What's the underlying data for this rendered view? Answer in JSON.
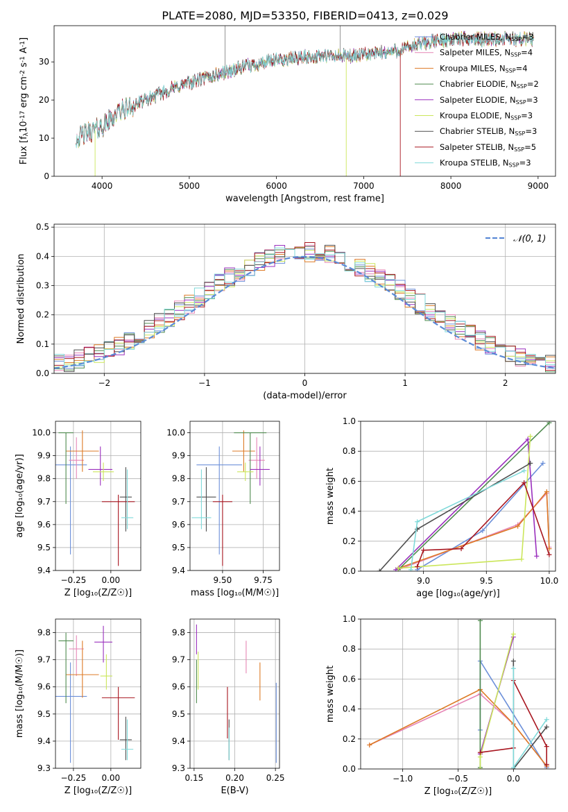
{
  "figure_title": "PLATE=2080, MJD=53350, FIBERID=0413, z=0.029",
  "colors": {
    "Chabrier MILES": "#6b8fd9",
    "Salpeter MILES": "#e685b5",
    "Kroupa MILES": "#dd7a24",
    "Chabrier ELODIE": "#4e8a4e",
    "Salpeter ELODIE": "#9a2fbd",
    "Kroupa ELODIE": "#cbe65a",
    "Chabrier STELIB": "#4d4d4d",
    "Salpeter STELIB": "#a8151f",
    "Kroupa STELIB": "#7fd9d9"
  },
  "chart_data": [
    {
      "id": "spectrum",
      "type": "line",
      "xlabel": "wavelength [Angstrom, rest frame]",
      "ylabel": "Flux [f$_\\lambda$10$^{-17}$ erg cm$^{-2}$ s$^{-1}$ A$^{-1}$]",
      "xlim": [
        3450,
        9200
      ],
      "ylim": [
        0,
        39.5
      ],
      "xticks": [
        4000,
        5000,
        6000,
        7000,
        8000,
        9000
      ],
      "yticks": [
        0,
        10,
        20,
        30
      ],
      "grid": false,
      "legend_position": "top-right",
      "legend": [
        {
          "name": "Chabrier MILES",
          "nssp": "3"
        },
        {
          "name": "Salpeter MILES",
          "nssp": "4"
        },
        {
          "name": "Kroupa MILES",
          "nssp": "4"
        },
        {
          "name": "Chabrier ELODIE",
          "nssp": "2"
        },
        {
          "name": "Salpeter ELODIE",
          "nssp": "3"
        },
        {
          "name": "Kroupa ELODIE",
          "nssp": "3"
        },
        {
          "name": "Chabrier STELIB",
          "nssp": "3"
        },
        {
          "name": "Salpeter STELIB",
          "nssp": "5"
        },
        {
          "name": "Kroupa STELIB",
          "nssp": "3"
        }
      ],
      "continuum": {
        "x": [
          3700,
          3900,
          4000,
          4200,
          4500,
          4800,
          5000,
          5300,
          5600,
          5900,
          6200,
          6500,
          6800,
          7100,
          7400,
          7700,
          8000,
          8300,
          8600,
          8900
        ],
        "y": [
          10,
          12,
          13,
          17,
          20,
          23,
          24.5,
          26.5,
          28.5,
          30,
          31,
          31.5,
          31.5,
          32,
          33,
          35,
          36,
          36,
          36,
          36
        ]
      }
    },
    {
      "id": "residuals",
      "type": "line",
      "xlabel": "(data-model)/error",
      "ylabel": "Normed distribution",
      "xlim": [
        -2.5,
        2.5
      ],
      "ylim": [
        0,
        0.51
      ],
      "xticks": [
        -2,
        -1,
        0,
        1,
        2
      ],
      "yticks": [
        0.0,
        0.1,
        0.2,
        0.3,
        0.4,
        0.5
      ],
      "grid": true,
      "legend_position": "top-right",
      "normal_label": "𝒩(0, 1)",
      "bin_width": 0.1
    },
    {
      "id": "age-vs-Z",
      "type": "scatter",
      "xlabel": "Z [log₁₀(Z/Z☉)]",
      "ylabel": "age  [log₁₀(age/yr)]",
      "xlim": [
        -0.37,
        0.2
      ],
      "ylim": [
        9.4,
        10.05
      ],
      "xticks": [
        -0.25,
        0.0
      ],
      "yticks": [
        9.4,
        9.5,
        9.6,
        9.7,
        9.8,
        9.9,
        10.0
      ],
      "grid": true,
      "points": [
        {
          "model": "Chabrier MILES",
          "x": -0.27,
          "xerr": 0.11,
          "y": 9.86,
          "ylo": 9.47,
          "yhi": 9.94
        },
        {
          "model": "Salpeter MILES",
          "x": -0.23,
          "xerr": 0.05,
          "y": 9.88,
          "ylo": 9.8,
          "yhi": 9.98
        },
        {
          "model": "Kroupa MILES",
          "x": -0.19,
          "xerr": 0.11,
          "y": 9.92,
          "ylo": 9.83,
          "yhi": 10.01
        },
        {
          "model": "Chabrier ELODIE",
          "x": -0.3,
          "xerr": 0.05,
          "y": 10.0,
          "ylo": 9.69,
          "yhi": 10.0
        },
        {
          "model": "Salpeter ELODIE",
          "x": -0.07,
          "xerr": 0.08,
          "y": 9.84,
          "ylo": 9.77,
          "yhi": 9.94
        },
        {
          "model": "Kroupa ELODIE",
          "x": -0.05,
          "xerr": 0.07,
          "y": 9.83,
          "ylo": 9.79,
          "yhi": 9.87
        },
        {
          "model": "Chabrier STELIB",
          "x": 0.1,
          "xerr": 0.04,
          "y": 9.72,
          "ylo": 9.57,
          "yhi": 9.85
        },
        {
          "model": "Salpeter STELIB",
          "x": 0.05,
          "xerr": 0.11,
          "y": 9.7,
          "ylo": 9.42,
          "yhi": 9.73
        },
        {
          "model": "Kroupa STELIB",
          "x": 0.11,
          "xerr": 0.04,
          "y": 9.63,
          "ylo": 9.58,
          "yhi": 9.84
        }
      ]
    },
    {
      "id": "age-vs-mass",
      "type": "scatter",
      "xlabel": "mass [log₁₀(M/M☉)]",
      "ylabel": "",
      "xlim": [
        9.3,
        9.85
      ],
      "ylim": [
        9.4,
        10.05
      ],
      "xticks": [
        9.5,
        9.75
      ],
      "yticks": [
        9.4,
        9.5,
        9.6,
        9.7,
        9.8,
        9.9,
        10.0
      ],
      "grid": true,
      "points": [
        {
          "model": "Chabrier MILES",
          "x": 9.48,
          "xerr": 0.14,
          "y": 9.86,
          "ylo": 9.47,
          "yhi": 9.94
        },
        {
          "model": "Salpeter MILES",
          "x": 9.71,
          "xerr": 0.05,
          "y": 9.88,
          "ylo": 9.8,
          "yhi": 9.98
        },
        {
          "model": "Kroupa MILES",
          "x": 9.63,
          "xerr": 0.07,
          "y": 9.92,
          "ylo": 9.83,
          "yhi": 10.01
        },
        {
          "model": "Chabrier ELODIE",
          "x": 9.67,
          "xerr": 0.1,
          "y": 10.0,
          "ylo": 9.69,
          "yhi": 10.0
        },
        {
          "model": "Salpeter ELODIE",
          "x": 9.73,
          "xerr": 0.06,
          "y": 9.84,
          "ylo": 9.77,
          "yhi": 9.94
        },
        {
          "model": "Kroupa ELODIE",
          "x": 9.64,
          "xerr": 0.05,
          "y": 9.83,
          "ylo": 9.79,
          "yhi": 9.87
        },
        {
          "model": "Chabrier STELIB",
          "x": 9.4,
          "xerr": 0.06,
          "y": 9.72,
          "ylo": 9.57,
          "yhi": 9.85
        },
        {
          "model": "Salpeter STELIB",
          "x": 9.5,
          "xerr": 0.06,
          "y": 9.7,
          "ylo": 9.42,
          "yhi": 9.73
        },
        {
          "model": "Kroupa STELIB",
          "x": 9.37,
          "xerr": 0.06,
          "y": 9.63,
          "ylo": 9.58,
          "yhi": 9.84
        }
      ]
    },
    {
      "id": "weight-vs-age",
      "type": "line",
      "xlabel": "age  [log₁₀(age/yr)]",
      "ylabel": "mass weight",
      "xlim": [
        8.5,
        10.05
      ],
      "ylim": [
        0,
        1.0
      ],
      "xticks": [
        9.0,
        9.5,
        10.0
      ],
      "yticks": [
        0.0,
        0.2,
        0.4,
        0.6,
        0.8,
        1.0
      ],
      "grid": true,
      "series": [
        {
          "model": "Chabrier MILES",
          "x": [
            8.95,
            9.47,
            9.95
          ],
          "y": [
            0.01,
            0.27,
            0.72
          ]
        },
        {
          "model": "Salpeter MILES",
          "x": [
            8.8,
            9.75,
            9.98,
            10.0
          ],
          "y": [
            0.01,
            0.31,
            0.52,
            0.16
          ]
        },
        {
          "model": "Kroupa MILES",
          "x": [
            8.8,
            9.75,
            9.98,
            10.0
          ],
          "y": [
            0.02,
            0.3,
            0.53,
            0.15
          ]
        },
        {
          "model": "Chabrier ELODIE",
          "x": [
            8.8,
            10.0
          ],
          "y": [
            0.01,
            0.99
          ]
        },
        {
          "model": "Salpeter ELODIE",
          "x": [
            8.78,
            9.83,
            9.9
          ],
          "y": [
            0.01,
            0.88,
            0.1
          ]
        },
        {
          "model": "Kroupa ELODIE",
          "x": [
            8.8,
            9.78,
            9.85
          ],
          "y": [
            0.02,
            0.08,
            0.9
          ]
        },
        {
          "model": "Chabrier STELIB",
          "x": [
            8.65,
            8.95,
            9.85
          ],
          "y": [
            0.0,
            0.28,
            0.72
          ]
        },
        {
          "model": "Salpeter STELIB",
          "x": [
            8.95,
            9.0,
            9.3,
            9.8,
            10.0
          ],
          "y": [
            0.03,
            0.14,
            0.15,
            0.59,
            0.11
          ]
        },
        {
          "model": "Kroupa STELIB",
          "x": [
            8.9,
            8.95,
            9.8
          ],
          "y": [
            0.01,
            0.33,
            0.67
          ]
        }
      ]
    },
    {
      "id": "mass-vs-Z",
      "type": "scatter",
      "xlabel": "Z [log₁₀(Z/Z☉)]",
      "ylabel": "mass [log₁₀(M/M☉)]",
      "xlim": [
        -0.37,
        0.2
      ],
      "ylim": [
        9.3,
        9.85
      ],
      "xticks": [
        -0.25,
        0.0
      ],
      "yticks": [
        9.3,
        9.4,
        9.5,
        9.6,
        9.7,
        9.8
      ],
      "grid": true,
      "points": [
        {
          "model": "Chabrier MILES",
          "x": -0.27,
          "xerr": 0.11,
          "y": 9.565,
          "ylo": 9.32,
          "yhi": 9.69
        },
        {
          "model": "Salpeter MILES",
          "x": -0.23,
          "xerr": 0.05,
          "y": 9.74,
          "ylo": 9.64,
          "yhi": 9.79
        },
        {
          "model": "Kroupa MILES",
          "x": -0.19,
          "xerr": 0.11,
          "y": 9.645,
          "ylo": 9.56,
          "yhi": 9.77
        },
        {
          "model": "Chabrier ELODIE",
          "x": -0.3,
          "xerr": 0.05,
          "y": 9.77,
          "ylo": 9.54,
          "yhi": 9.8
        },
        {
          "model": "Salpeter ELODIE",
          "x": -0.05,
          "xerr": 0.06,
          "y": 9.765,
          "ylo": 9.69,
          "yhi": 9.825
        },
        {
          "model": "Kroupa ELODIE",
          "x": -0.03,
          "xerr": 0.04,
          "y": 9.64,
          "ylo": 9.59,
          "yhi": 9.72
        },
        {
          "model": "Chabrier STELIB",
          "x": 0.1,
          "xerr": 0.04,
          "y": 9.405,
          "ylo": 9.33,
          "yhi": 9.49
        },
        {
          "model": "Salpeter STELIB",
          "x": 0.05,
          "xerr": 0.11,
          "y": 9.56,
          "ylo": 9.405,
          "yhi": 9.6
        },
        {
          "model": "Kroupa STELIB",
          "x": 0.11,
          "xerr": 0.04,
          "y": 9.37,
          "ylo": 9.33,
          "yhi": 9.48
        }
      ]
    },
    {
      "id": "mass-vs-EBV",
      "type": "scatter",
      "xlabel": "E(B-V)",
      "ylabel": "",
      "xlim": [
        0.145,
        0.255
      ],
      "ylim": [
        9.3,
        9.85
      ],
      "xticks": [
        0.15,
        0.2,
        0.25
      ],
      "yticks": [
        9.3,
        9.4,
        9.5,
        9.6,
        9.7,
        9.8
      ],
      "grid": true,
      "points": [
        {
          "model": "Chabrier MILES",
          "x": 0.251,
          "ylo": 9.32,
          "yhi": 9.615
        },
        {
          "model": "Salpeter MILES",
          "x": 0.214,
          "ylo": 9.65,
          "yhi": 9.77
        },
        {
          "model": "Kroupa MILES",
          "x": 0.231,
          "ylo": 9.55,
          "yhi": 9.69
        },
        {
          "model": "Chabrier ELODIE",
          "x": 0.153,
          "ylo": 9.54,
          "yhi": 9.7
        },
        {
          "model": "Salpeter ELODIE",
          "x": 0.153,
          "ylo": 9.72,
          "yhi": 9.83
        },
        {
          "model": "Kroupa ELODIE",
          "x": 0.155,
          "ylo": 9.59,
          "yhi": 9.73
        },
        {
          "model": "Chabrier STELIB",
          "x": 0.193,
          "ylo": 9.33,
          "yhi": 9.48
        },
        {
          "model": "Salpeter STELIB",
          "x": 0.191,
          "ylo": 9.41,
          "yhi": 9.6
        },
        {
          "model": "Kroupa STELIB",
          "x": 0.193,
          "ylo": 9.33,
          "yhi": 9.45
        }
      ]
    },
    {
      "id": "weight-vs-Z",
      "type": "line",
      "xlabel": "Z [log₁₀(Z/Z☉)]",
      "ylabel": "mass weight",
      "xlim": [
        -1.38,
        0.38
      ],
      "ylim": [
        0,
        1.0
      ],
      "xticks": [
        -1.0,
        -0.5,
        0.0
      ],
      "yticks": [
        0.0,
        0.2,
        0.4,
        0.6,
        0.8,
        1.0
      ],
      "grid": true,
      "series": [
        {
          "model": "Chabrier MILES",
          "x": [
            -0.3,
            -0.3,
            0.3
          ],
          "y": [
            0.26,
            0.72,
            0.01
          ]
        },
        {
          "model": "Salpeter MILES",
          "x": [
            -1.3,
            -0.3,
            0.0,
            0.3
          ],
          "y": [
            0.16,
            0.5,
            0.3,
            0.02
          ]
        },
        {
          "model": "Kroupa MILES",
          "x": [
            -1.3,
            -0.3,
            0.0,
            0.3
          ],
          "y": [
            0.16,
            0.53,
            0.3,
            0.02
          ]
        },
        {
          "model": "Chabrier ELODIE",
          "x": [
            -0.3,
            -0.3
          ],
          "y": [
            0.01,
            0.99
          ]
        },
        {
          "model": "Salpeter ELODIE",
          "x": [
            -0.3,
            0.0
          ],
          "y": [
            0.1,
            0.88
          ]
        },
        {
          "model": "Kroupa ELODIE",
          "x": [
            -0.3,
            -0.3,
            0.0
          ],
          "y": [
            0.0,
            0.08,
            0.9
          ]
        },
        {
          "model": "Chabrier STELIB",
          "x": [
            0.0,
            0.0,
            0.3
          ],
          "y": [
            0.72,
            0.0,
            0.28
          ]
        },
        {
          "model": "Salpeter STELIB",
          "x": [
            -0.3,
            0.0,
            0.0,
            0.3,
            0.3
          ],
          "y": [
            0.11,
            0.14,
            0.59,
            0.15,
            0.03
          ]
        },
        {
          "model": "Kroupa STELIB",
          "x": [
            0.0,
            0.0,
            0.3
          ],
          "y": [
            0.67,
            0.01,
            0.33
          ]
        }
      ]
    }
  ]
}
